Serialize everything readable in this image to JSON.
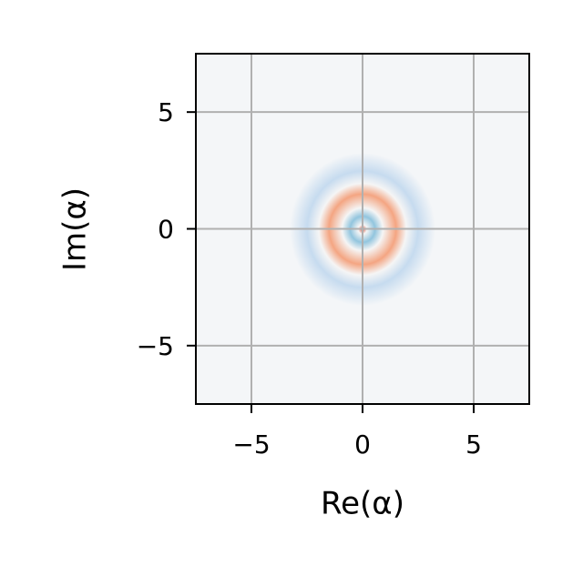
{
  "chart_data": {
    "type": "heatmap",
    "xlabel": "Re(α)",
    "ylabel": "Im(α)",
    "xlim": [
      -7.5,
      7.5
    ],
    "ylim": [
      -7.5,
      7.5
    ],
    "xticks": [
      {
        "value": -5,
        "label": "−5"
      },
      0,
      5
    ],
    "yticks": [
      {
        "value": -5,
        "label": "−5"
      },
      0,
      5
    ],
    "grid": true
  }
}
